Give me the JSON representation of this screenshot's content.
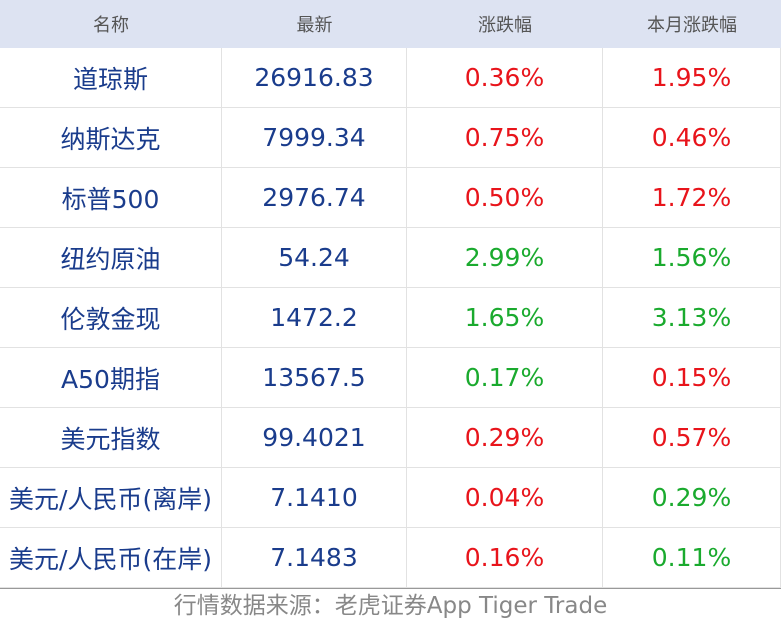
{
  "table": {
    "header": [
      "名称",
      "最新",
      "涨跌幅",
      "本月涨跌幅"
    ],
    "rows": [
      [
        "道琼斯",
        "26916.83",
        "0.36%",
        "1.95%"
      ],
      [
        "纳斯达克",
        "7999.34",
        "0.75%",
        "0.46%"
      ],
      [
        "标普500",
        "2976.74",
        "0.50%",
        "1.72%"
      ],
      [
        "纽约原油",
        "54.24",
        "2.99%",
        "1.56%"
      ],
      [
        "伦敦金现",
        "1472.2",
        "1.65%",
        "3.13%"
      ],
      [
        "A50期指",
        "13567.5",
        "0.17%",
        "0.15%"
      ],
      [
        "美元指数",
        "99.4021",
        "0.29%",
        "0.57%"
      ],
      [
        "美元/人民币(离岸)",
        "7.1410",
        "0.04%",
        "0.29%"
      ],
      [
        "美元/人民币(在岸)",
        "7.1483",
        "0.16%",
        "0.11%"
      ]
    ],
    "change_colors": [
      [
        "#e8141b",
        "#e8141b"
      ],
      [
        "#e8141b",
        "#e8141b"
      ],
      [
        "#e8141b",
        "#e8141b"
      ],
      [
        "#1aaa2e",
        "#1aaa2e"
      ],
      [
        "#1aaa2e",
        "#1aaa2e"
      ],
      [
        "#1aaa2e",
        "#e8141b"
      ],
      [
        "#e8141b",
        "#e8141b"
      ],
      [
        "#e8141b",
        "#1aaa2e"
      ],
      [
        "#e8141b",
        "#1aaa2e"
      ]
    ]
  },
  "footer": "行情数据来源：老虎证券App Tiger Trade"
}
